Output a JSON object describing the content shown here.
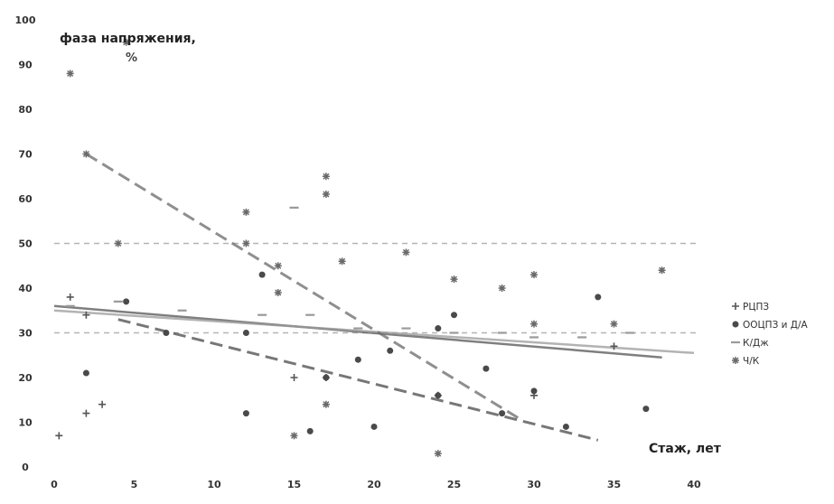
{
  "chart_data": {
    "type": "scatter",
    "ylabel_line1": "фаза напряжения,",
    "ylabel_line2": "%",
    "xlabel": "Стаж, лет",
    "xlim": [
      0,
      40
    ],
    "ylim": [
      0,
      100
    ],
    "x_ticks": [
      0,
      5,
      10,
      15,
      20,
      25,
      30,
      35,
      40
    ],
    "y_ticks": [
      0,
      10,
      20,
      30,
      40,
      50,
      60,
      70,
      80,
      90,
      100
    ],
    "reference_lines": [
      50,
      30
    ],
    "legend_position": "right",
    "series": [
      {
        "name": "РЦПЗ",
        "marker": "plus",
        "color": "#555555",
        "points": [
          [
            0.3,
            7
          ],
          [
            1,
            38
          ],
          [
            2,
            34
          ],
          [
            2,
            12
          ],
          [
            3,
            14
          ],
          [
            15,
            20
          ],
          [
            17,
            20
          ],
          [
            24,
            16
          ],
          [
            30,
            16
          ],
          [
            35,
            27
          ]
        ],
        "trend": [
          [
            0,
            36
          ],
          [
            38,
            24.5
          ]
        ],
        "trend_style": "solid"
      },
      {
        "name": "ООЦПЗ и Д/А",
        "marker": "dot",
        "color": "#4a4a4a",
        "points": [
          [
            2,
            21
          ],
          [
            4.5,
            37
          ],
          [
            7,
            30
          ],
          [
            12,
            12
          ],
          [
            12,
            30
          ],
          [
            13,
            43
          ],
          [
            16,
            8
          ],
          [
            17,
            20
          ],
          [
            19,
            24
          ],
          [
            20,
            9
          ],
          [
            21,
            26
          ],
          [
            24,
            31
          ],
          [
            24,
            16
          ],
          [
            25,
            34
          ],
          [
            27,
            22
          ],
          [
            28,
            12
          ],
          [
            30,
            17
          ],
          [
            32,
            9
          ],
          [
            34,
            38
          ],
          [
            37,
            13
          ]
        ],
        "trend": [
          [
            4,
            33
          ],
          [
            34,
            6
          ]
        ],
        "trend_style": "dashed"
      },
      {
        "name": "К/Дж",
        "marker": "dash",
        "color": "#9a9a9a",
        "points": [
          [
            1,
            36
          ],
          [
            4,
            37
          ],
          [
            8,
            35
          ],
          [
            13,
            34
          ],
          [
            15,
            58
          ],
          [
            16,
            34
          ],
          [
            19,
            31
          ],
          [
            22,
            31
          ],
          [
            25,
            30
          ],
          [
            28,
            30
          ],
          [
            30,
            29
          ],
          [
            33,
            29
          ],
          [
            36,
            30
          ]
        ],
        "trend": [
          [
            0,
            35
          ],
          [
            40,
            25.5
          ]
        ],
        "trend_style": "solid"
      },
      {
        "name": "Ч/К",
        "marker": "star",
        "color": "#6a6a6a",
        "points": [
          [
            1,
            88
          ],
          [
            2,
            70
          ],
          [
            4,
            50
          ],
          [
            4.5,
            95
          ],
          [
            12,
            57
          ],
          [
            12,
            50
          ],
          [
            14,
            45
          ],
          [
            14,
            39
          ],
          [
            15,
            7
          ],
          [
            17,
            65
          ],
          [
            17,
            61
          ],
          [
            17,
            14
          ],
          [
            18,
            46
          ],
          [
            22,
            48
          ],
          [
            24,
            3
          ],
          [
            25,
            42
          ],
          [
            28,
            40
          ],
          [
            30,
            43
          ],
          [
            30,
            32
          ],
          [
            35,
            32
          ],
          [
            38,
            44
          ]
        ],
        "trend": [
          [
            2,
            70
          ],
          [
            29,
            11
          ]
        ],
        "trend_style": "dashed"
      }
    ]
  }
}
